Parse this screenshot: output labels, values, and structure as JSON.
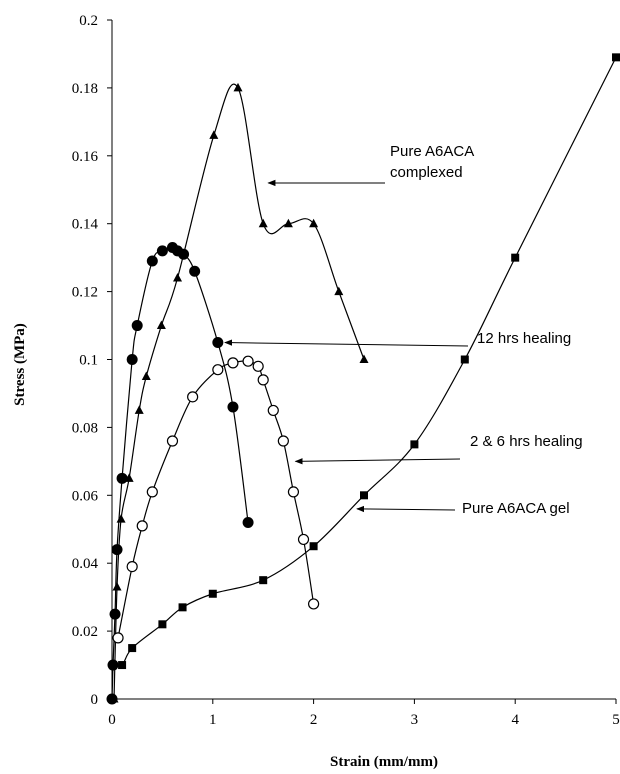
{
  "chart_data": {
    "type": "scatter",
    "xlabel": "Strain (mm/mm)",
    "ylabel": "Stress (MPa)",
    "xlim": [
      0,
      5
    ],
    "ylim": [
      0,
      0.2
    ],
    "x_ticks": [
      "0",
      "1",
      "2",
      "3",
      "4",
      "5"
    ],
    "y_ticks": [
      "0",
      "0.02",
      "0.04",
      "0.06",
      "0.08",
      "0.1",
      "0.12",
      "0.14",
      "0.16",
      "0.18",
      "0.2"
    ],
    "grid": false,
    "legend": "none",
    "series": [
      {
        "marker": "triangle",
        "color": "#000000",
        "points": [
          [
            0.02,
            0.0
          ],
          [
            0.05,
            0.033
          ],
          [
            0.09,
            0.053
          ],
          [
            0.17,
            0.065
          ],
          [
            0.27,
            0.085
          ],
          [
            0.34,
            0.095
          ],
          [
            0.49,
            0.11
          ],
          [
            0.65,
            0.124
          ],
          [
            1.01,
            0.166
          ],
          [
            1.25,
            0.18
          ],
          [
            1.5,
            0.14
          ],
          [
            1.75,
            0.14
          ],
          [
            2.0,
            0.14
          ],
          [
            2.25,
            0.12
          ],
          [
            2.5,
            0.1
          ]
        ]
      },
      {
        "marker": "filled-circle",
        "color": "#000000",
        "points": [
          [
            0.0,
            0.0
          ],
          [
            0.01,
            0.01
          ],
          [
            0.03,
            0.025
          ],
          [
            0.05,
            0.044
          ],
          [
            0.1,
            0.065
          ],
          [
            0.2,
            0.1
          ],
          [
            0.25,
            0.11
          ],
          [
            0.4,
            0.129
          ],
          [
            0.5,
            0.132
          ],
          [
            0.6,
            0.133
          ],
          [
            0.65,
            0.132
          ],
          [
            0.71,
            0.131
          ],
          [
            0.82,
            0.126
          ],
          [
            1.05,
            0.105
          ],
          [
            1.2,
            0.086
          ],
          [
            1.35,
            0.052
          ]
        ]
      },
      {
        "marker": "open-circle",
        "color": "#000000",
        "points": [
          [
            0.06,
            0.018
          ],
          [
            0.2,
            0.039
          ],
          [
            0.3,
            0.051
          ],
          [
            0.4,
            0.061
          ],
          [
            0.6,
            0.076
          ],
          [
            0.8,
            0.089
          ],
          [
            1.05,
            0.097
          ],
          [
            1.2,
            0.099
          ],
          [
            1.35,
            0.0995
          ],
          [
            1.45,
            0.098
          ],
          [
            1.5,
            0.094
          ],
          [
            1.6,
            0.085
          ],
          [
            1.7,
            0.076
          ],
          [
            1.8,
            0.061
          ],
          [
            1.9,
            0.047
          ],
          [
            2.0,
            0.028
          ]
        ]
      },
      {
        "marker": "filled-square",
        "color": "#000000",
        "points": [
          [
            0.01,
            0.01
          ],
          [
            0.1,
            0.01
          ],
          [
            0.2,
            0.015
          ],
          [
            0.5,
            0.022
          ],
          [
            0.7,
            0.027
          ],
          [
            1.0,
            0.031
          ],
          [
            1.5,
            0.035
          ],
          [
            2.0,
            0.045
          ],
          [
            2.5,
            0.06
          ],
          [
            3.0,
            0.075
          ],
          [
            3.5,
            0.1
          ],
          [
            4.0,
            0.13
          ],
          [
            5.0,
            0.189
          ]
        ]
      }
    ],
    "annotations": [
      {
        "lines": [
          "Pure A6ACA",
          "complexed"
        ],
        "arrow_to": [
          1.55,
          0.152
        ]
      },
      {
        "lines": [
          "12 hrs healing"
        ],
        "arrow_to": [
          1.12,
          0.105
        ]
      },
      {
        "lines": [
          "2 & 6 hrs healing"
        ],
        "arrow_to": [
          1.82,
          0.07
        ]
      },
      {
        "lines": [
          "Pure A6ACA gel"
        ],
        "arrow_to": [
          2.43,
          0.056
        ]
      }
    ]
  }
}
